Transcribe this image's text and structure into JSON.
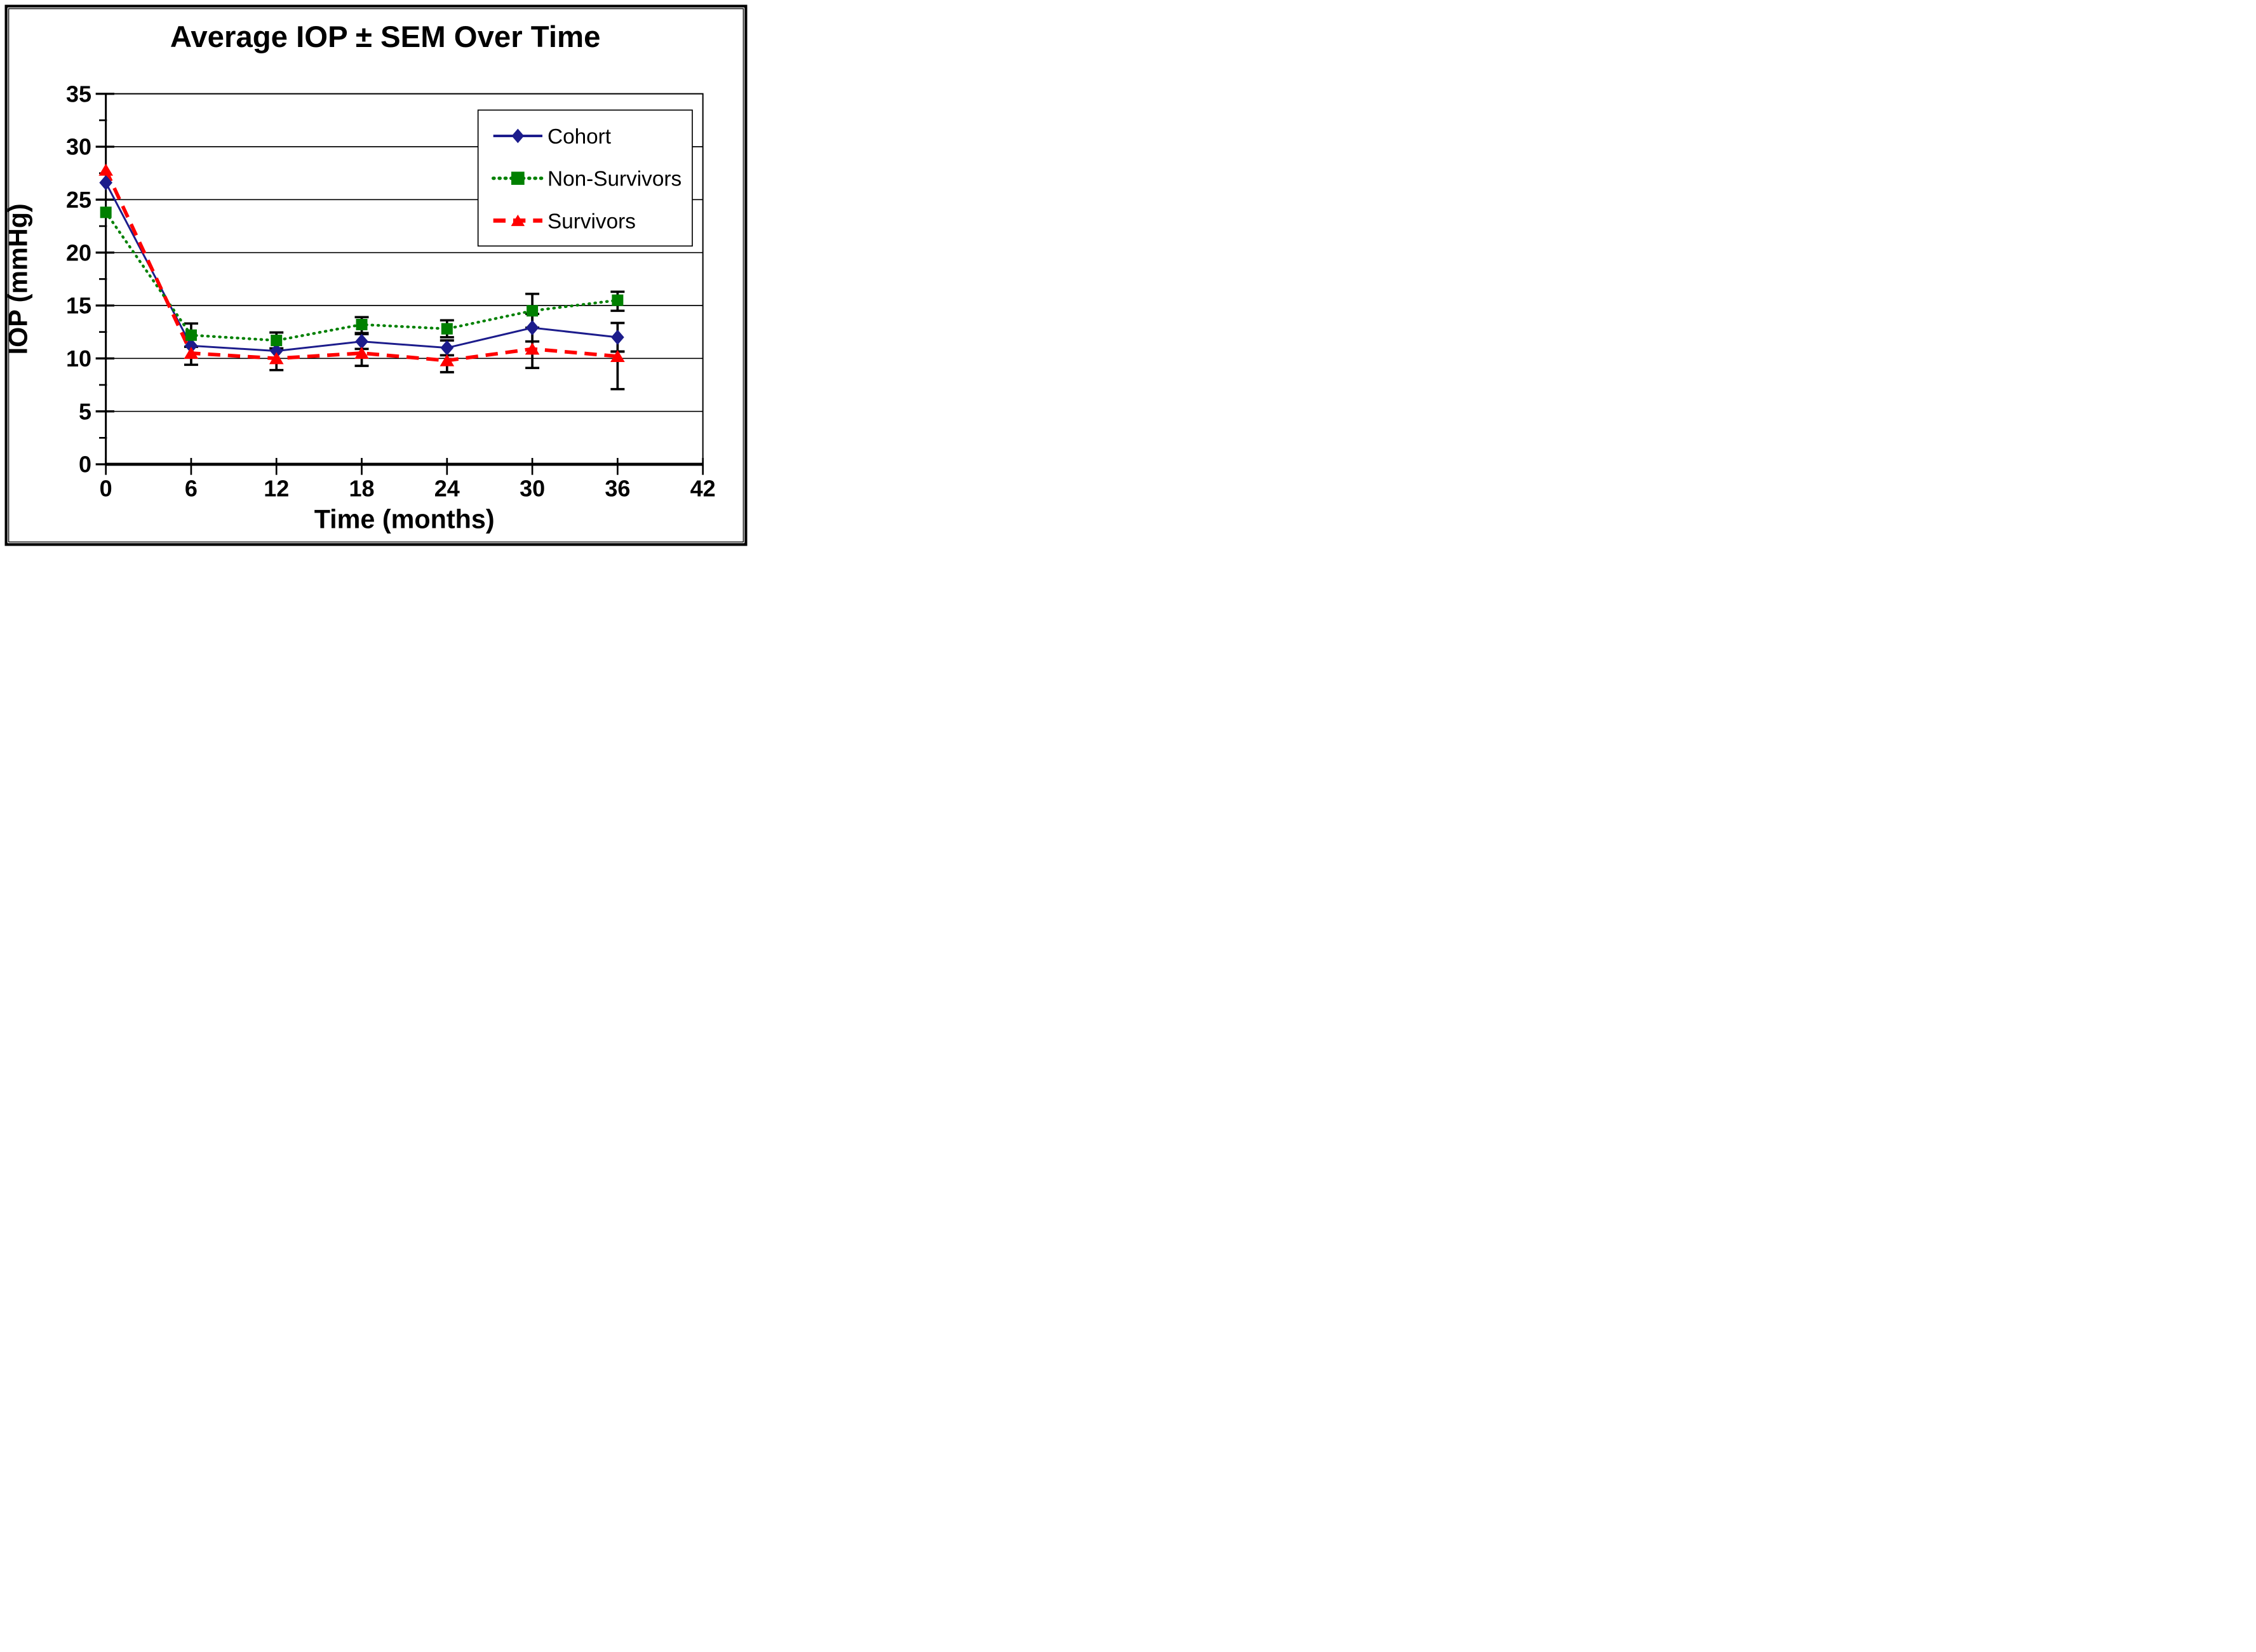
{
  "title": "Average IOP ± SEM Over Time",
  "x_axis": {
    "label": "Time (months)",
    "min": 0,
    "max": 42,
    "tick_step": 6,
    "tick_labels": [
      "0",
      "6",
      "12",
      "18",
      "24",
      "30",
      "36",
      "42"
    ]
  },
  "y_axis": {
    "label": "IOP (mmHg)",
    "min": 0,
    "max": 35,
    "tick_step": 5,
    "minor_tick_step": 2.5,
    "tick_labels": [
      "0",
      "5",
      "10",
      "15",
      "20",
      "25",
      "30",
      "35"
    ]
  },
  "legend": {
    "position": "upper-right",
    "entries": [
      "Cohort",
      "Non-Survivors",
      "Survivors"
    ]
  },
  "colors": {
    "cohort": "#1c1c8c",
    "non_survivors": "#008000",
    "survivors": "#ff0000",
    "error_bar": "#000000",
    "grid": "#000000",
    "frame": "#000000"
  },
  "chart_data": {
    "type": "line",
    "title": "Average IOP ± SEM Over Time",
    "xlabel": "Time (months)",
    "ylabel": "IOP (mmHg)",
    "xlim": [
      0,
      42
    ],
    "ylim": [
      0,
      35
    ],
    "grid": "horizontal",
    "legend_position": "upper-right-inside",
    "x": [
      0,
      6,
      12,
      18,
      24,
      30,
      36
    ],
    "series": [
      {
        "name": "Cohort",
        "color": "#1c1c8c",
        "marker": "diamond",
        "line_style": "solid",
        "values": [
          26.6,
          11.2,
          10.7,
          11.6,
          11.0,
          12.9,
          12.0
        ],
        "err_up": [
          0,
          0,
          0,
          0.7,
          0.7,
          1.3,
          1.35
        ],
        "err_down": [
          0,
          0,
          0,
          0.7,
          0.7,
          1.3,
          1.35
        ]
      },
      {
        "name": "Non-Survivors",
        "color": "#008000",
        "marker": "square",
        "line_style": "dotted",
        "values": [
          23.8,
          12.2,
          11.7,
          13.2,
          12.8,
          14.5,
          15.5
        ],
        "err_up": [
          0,
          1.1,
          0.75,
          0.7,
          0.8,
          1.6,
          0.8
        ],
        "err_down": [
          0,
          1.1,
          0.75,
          0.8,
          0.8,
          1.6,
          1.0
        ]
      },
      {
        "name": "Survivors",
        "color": "#ff0000",
        "marker": "triangle",
        "line_style": "dashed",
        "values": [
          27.8,
          10.5,
          10.0,
          10.5,
          9.8,
          10.9,
          10.2
        ],
        "err_up": [
          0,
          0,
          0,
          0.4,
          0.5,
          0.7,
          0.45
        ],
        "err_down": [
          0,
          1.1,
          1.1,
          1.2,
          1.1,
          1.8,
          3.1
        ]
      }
    ]
  }
}
